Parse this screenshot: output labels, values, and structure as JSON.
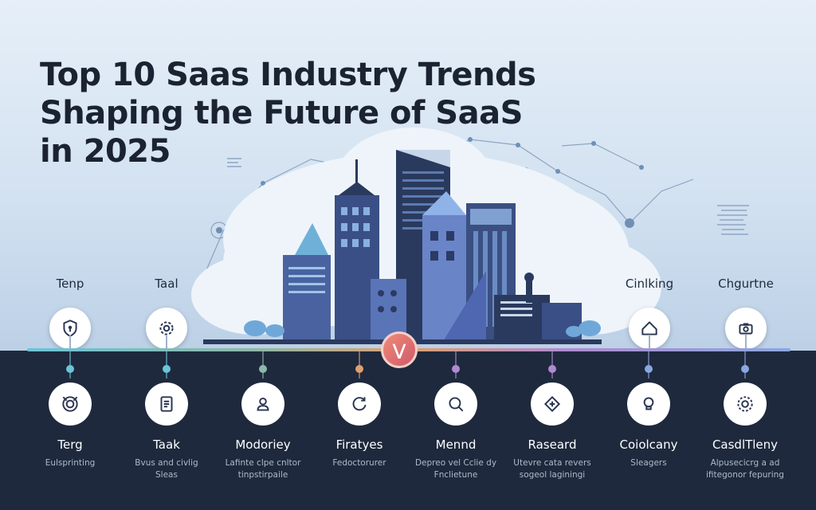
{
  "title_lines": [
    "Top 10 Saas Industry Trends",
    "Shaping the Future of SaaS",
    "in 2025"
  ],
  "colors": {
    "title": "#1b2333",
    "bottom_panel": "#1e293d",
    "center_badge": "#e0706c"
  },
  "center_badge_glyph": "⋁",
  "top_items": [
    {
      "label": "Tenp",
      "icon": "shield-icon"
    },
    {
      "label": "Taal",
      "icon": "gear-icon"
    },
    {
      "label": "Cinlking",
      "icon": "home-icon"
    },
    {
      "label": "Chgurtne",
      "icon": "camera-icon"
    }
  ],
  "bottom_items": [
    {
      "name": "Terg",
      "desc": "Eulsprinting",
      "icon": "target-icon",
      "dot": "#6cc4d8"
    },
    {
      "name": "Taak",
      "desc": "Bvus and civlig\nSleas",
      "icon": "document-icon",
      "dot": "#6cc4d8"
    },
    {
      "name": "Modoriey",
      "desc": "Lafinte clpe cnltor\ntinpstirpaile",
      "icon": "user-icon",
      "dot": "#8fb8a8"
    },
    {
      "name": "Firatyes",
      "desc": "Fedoctorurer",
      "icon": "refresh-icon",
      "dot": "#e0a070"
    },
    {
      "name": "Mennd",
      "desc": "Depreo vel Cclie dy\nFnclietune",
      "icon": "search-icon",
      "dot": "#b08ad0"
    },
    {
      "name": "Raseard",
      "desc": "Utevre cata revers\nsogeol laginingi",
      "icon": "diamond-icon",
      "dot": "#b08ad0"
    },
    {
      "name": "Coiolcany",
      "desc": "Sleagers",
      "icon": "bulb-icon",
      "dot": "#8aa8e0"
    },
    {
      "name": "CasdlTleny",
      "desc": "Alpusecicrg a ad\nifitegonor fepuring",
      "icon": "settings-icon",
      "dot": "#8aa8e0"
    }
  ]
}
